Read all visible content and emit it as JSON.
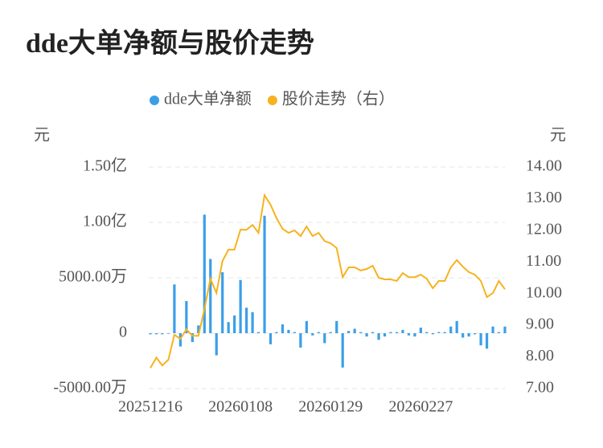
{
  "chart_data": {
    "type": "bar-line",
    "title": "dde大单净额与股价走势",
    "y_unit": "元",
    "y2_unit": "元",
    "categories": [
      "20251216",
      null,
      null,
      null,
      null,
      null,
      null,
      null,
      null,
      null,
      null,
      null,
      null,
      null,
      null,
      "20260108",
      null,
      null,
      null,
      null,
      null,
      null,
      null,
      null,
      null,
      null,
      null,
      null,
      null,
      null,
      "20260129",
      null,
      null,
      null,
      null,
      null,
      null,
      null,
      null,
      null,
      null,
      null,
      null,
      null,
      null,
      "20260227",
      null,
      null,
      null,
      null,
      null,
      null,
      null,
      null,
      null,
      null,
      null,
      null,
      null,
      null
    ],
    "series": [
      {
        "name": "dde大单净额",
        "type": "bar",
        "color": "#3a9fe8",
        "values": [
          -100,
          -100,
          -100,
          -50,
          4400,
          -1200,
          2900,
          -800,
          700,
          10700,
          6700,
          -2000,
          5500,
          1000,
          1600,
          4800,
          2300,
          1900,
          100,
          10600,
          -1000,
          100,
          800,
          300,
          100,
          -1300,
          1100,
          -200,
          100,
          -900,
          100,
          1100,
          -3100,
          200,
          400,
          100,
          -300,
          100,
          -600,
          -300,
          100,
          100,
          300,
          -200,
          -300,
          500,
          100,
          -100,
          100,
          100,
          600,
          1100,
          -400,
          -300,
          -100,
          -1100,
          -1400,
          600,
          100,
          600
        ]
      },
      {
        "name": "股价走势（右）",
        "type": "line",
        "axis": "y2",
        "color": "#f5b31f",
        "values": [
          7.65,
          7.98,
          7.73,
          7.91,
          8.7,
          8.57,
          8.87,
          8.67,
          8.67,
          9.51,
          10.47,
          10.02,
          11.03,
          11.39,
          11.39,
          12.02,
          12.02,
          12.17,
          11.92,
          13.11,
          12.81,
          12.38,
          12.05,
          11.92,
          12.0,
          11.82,
          12.12,
          11.82,
          11.92,
          11.66,
          11.59,
          11.44,
          10.52,
          10.83,
          10.83,
          10.73,
          10.78,
          10.88,
          10.5,
          10.45,
          10.45,
          10.4,
          10.65,
          10.52,
          10.52,
          10.6,
          10.47,
          10.17,
          10.4,
          10.4,
          10.83,
          11.06,
          10.85,
          10.68,
          10.6,
          10.4,
          9.89,
          10.02,
          10.4,
          10.14
        ]
      }
    ],
    "ylim": [
      -5000,
      15000
    ],
    "yticks": [
      {
        "value": -5000,
        "label": "-5000.00万"
      },
      0,
      {
        "value": 5000,
        "label": "5000.00万"
      },
      {
        "value": 10000,
        "label": "1.00亿"
      },
      {
        "value": 15000,
        "label": "1.50亿"
      }
    ],
    "y2lim": [
      7,
      14
    ],
    "y2ticks": [
      {
        "value": 7,
        "label": "7.00"
      },
      {
        "value": 8,
        "label": "8.00"
      },
      {
        "value": 9,
        "label": "9.00"
      },
      {
        "value": 10,
        "label": "10.00"
      },
      {
        "value": 11,
        "label": "11.00"
      },
      {
        "value": 12,
        "label": "12.00"
      },
      {
        "value": 13,
        "label": "13.00"
      },
      {
        "value": 14,
        "label": "14.00"
      }
    ],
    "grid": true,
    "legend": "top"
  }
}
